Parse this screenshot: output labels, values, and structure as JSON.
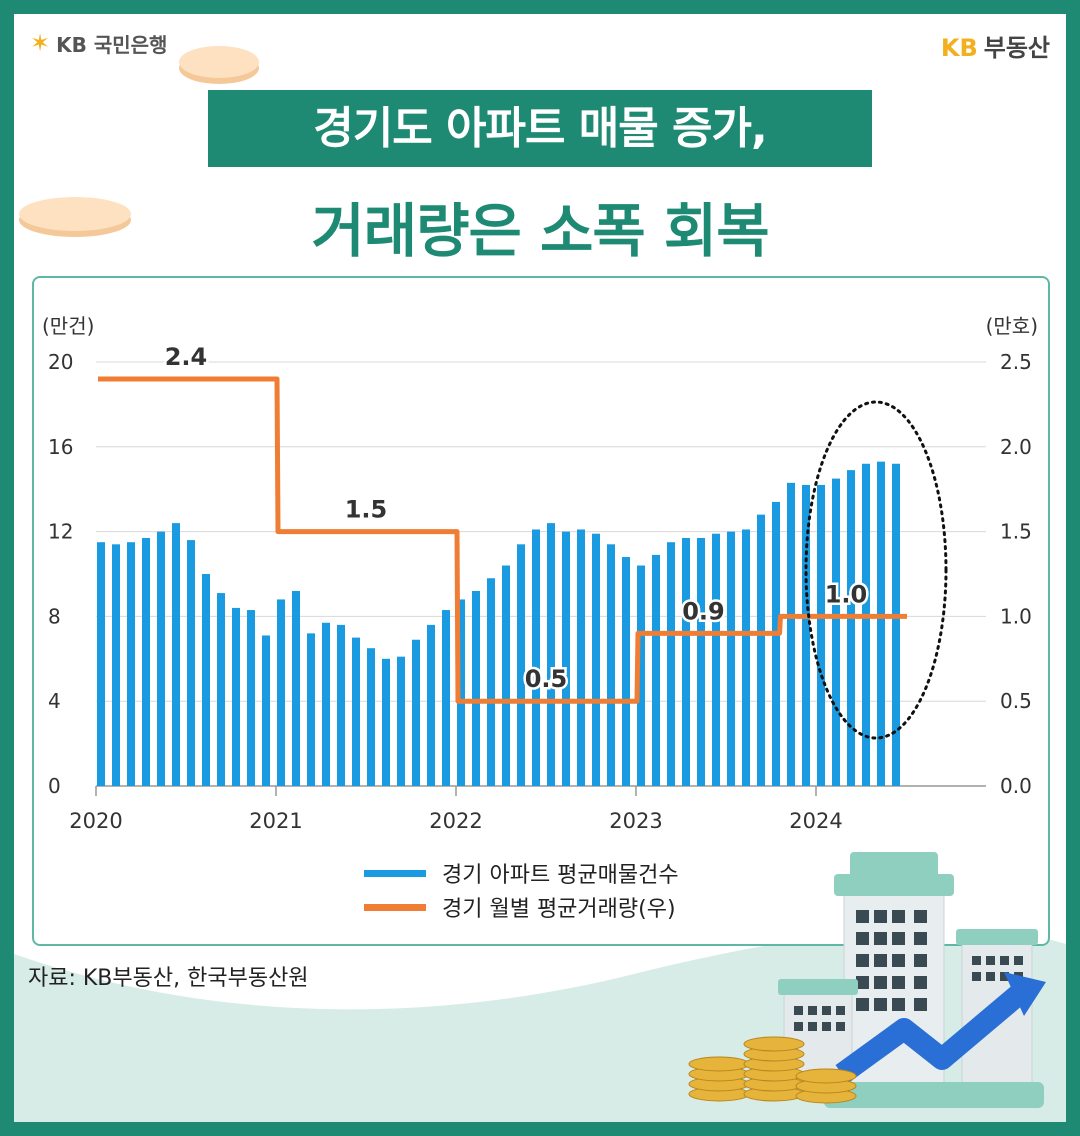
{
  "header": {
    "logo_left_symbol": "✶",
    "logo_left": "KB 국민은행",
    "logo_right_kb": "KB",
    "logo_right": "부동산"
  },
  "title": {
    "line1": "경기도 아파트 매물 증가,",
    "line2": "거래량은 소폭 회복"
  },
  "colors": {
    "brand_green": "#1e8a74",
    "bar_blue": "#1a9ae0",
    "line_orange": "#ef7d34"
  },
  "chart_data": {
    "type": "bar",
    "left_unit": "(만건)",
    "right_unit": "(만호)",
    "x_tick_labels": [
      "2020",
      "2021",
      "2022",
      "2023",
      "2024"
    ],
    "left_axis": {
      "ylim": [
        0,
        20
      ],
      "ticks": [
        "0",
        "4",
        "8",
        "12",
        "16",
        "20"
      ]
    },
    "right_axis": {
      "ylim": [
        0,
        2.5
      ],
      "ticks": [
        "0.0",
        "0.5",
        "1.0",
        "1.5",
        "2.0",
        "2.5"
      ]
    },
    "grid": true,
    "legend_position": "bottom-center",
    "series": [
      {
        "name": "경기 아파트 평균매물건수",
        "type": "bar",
        "axis": "left",
        "values": [
          11.5,
          11.4,
          11.5,
          11.7,
          12.0,
          12.4,
          11.6,
          10.0,
          9.1,
          8.4,
          8.3,
          7.1,
          8.8,
          9.2,
          7.2,
          7.7,
          7.6,
          7.0,
          6.5,
          6.0,
          6.1,
          6.9,
          7.6,
          8.3,
          8.8,
          9.2,
          9.8,
          10.4,
          11.4,
          12.1,
          12.4,
          12.0,
          12.1,
          11.9,
          11.4,
          10.8,
          10.4,
          10.9,
          11.5,
          11.7,
          11.7,
          11.9,
          12.0,
          12.1,
          12.8,
          13.4,
          14.3,
          14.2,
          14.2,
          14.5,
          14.9,
          15.2,
          15.3,
          15.2
        ]
      },
      {
        "name": "경기 월별 평균거래량(우)",
        "type": "step-line",
        "axis": "right",
        "segments": [
          {
            "label": "2.4",
            "value": 2.4
          },
          {
            "label": "1.5",
            "value": 1.5
          },
          {
            "label": "0.5",
            "value": 0.5
          },
          {
            "label": "0.9",
            "value": 0.9
          },
          {
            "label": "1.0",
            "value": 1.0
          }
        ]
      }
    ],
    "annotation": "dotted-ellipse-around-2024"
  },
  "source": "자료: KB부동산, 한국부동산원"
}
